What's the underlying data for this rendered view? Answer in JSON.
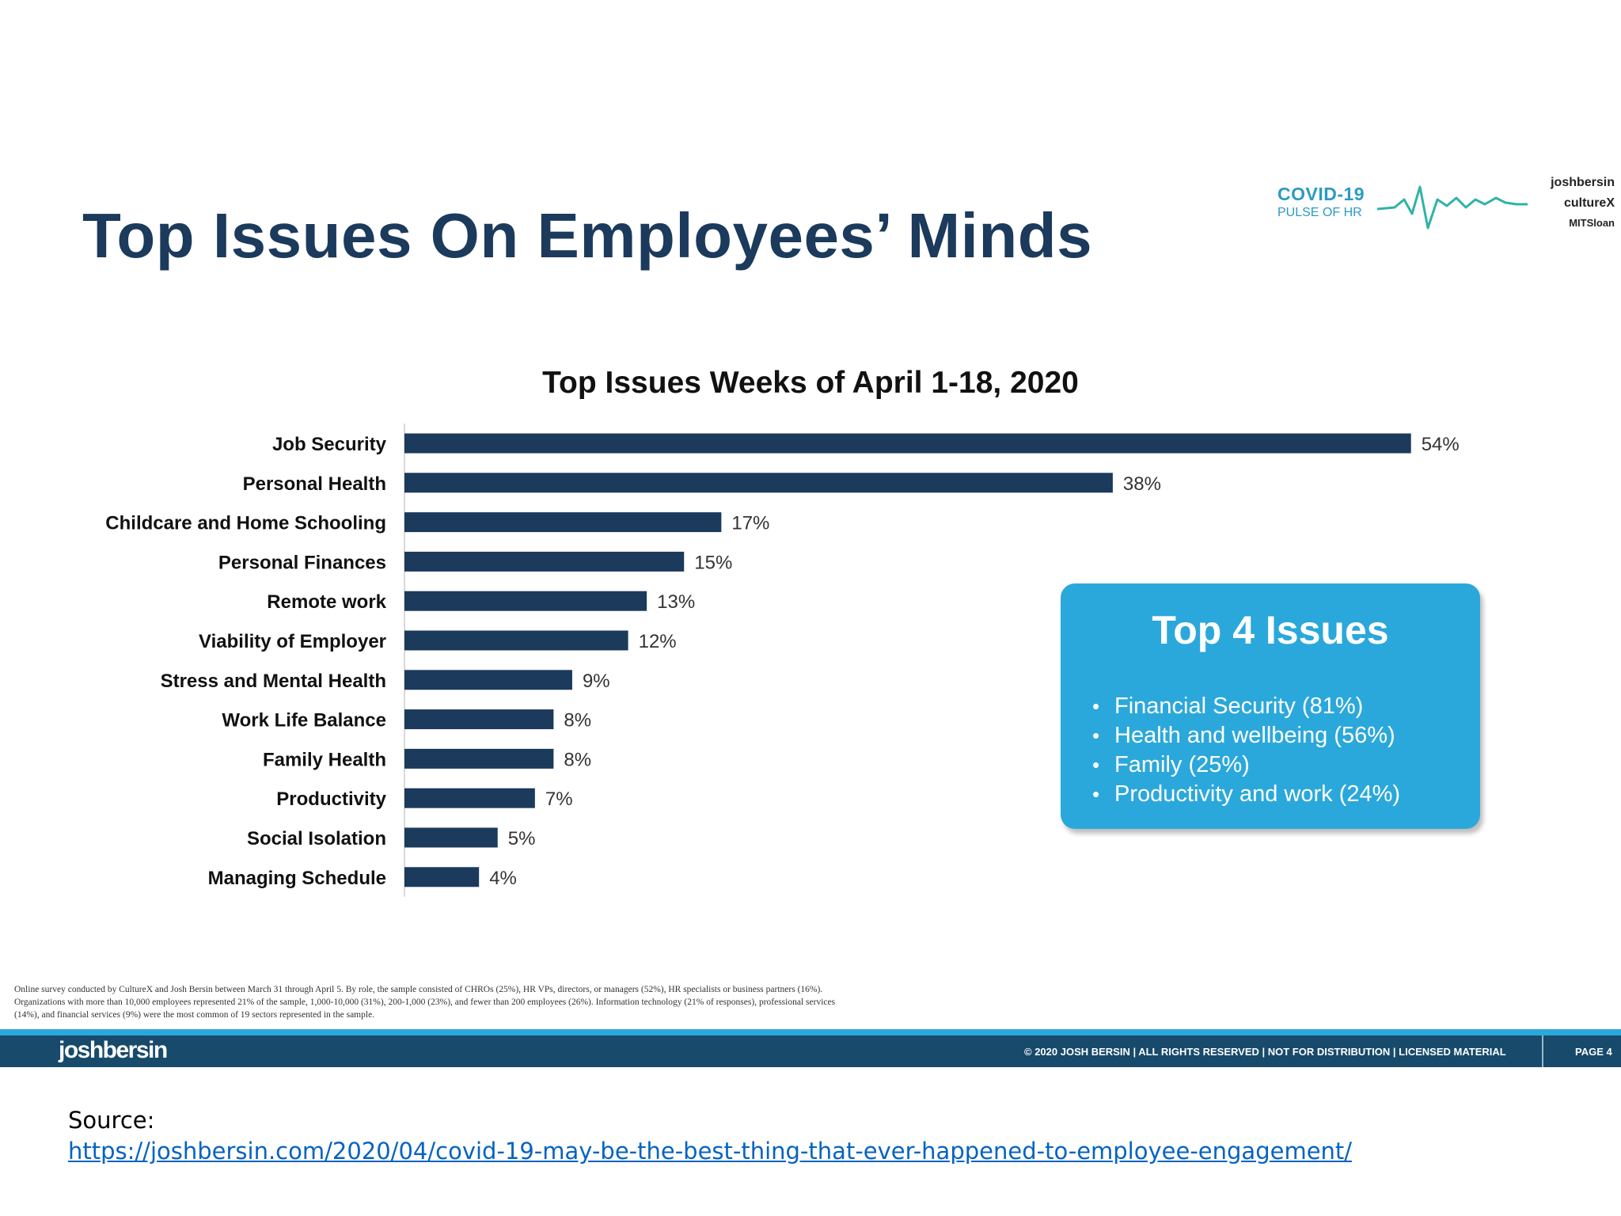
{
  "slide": {
    "title": "Top Issues On Employees’ Minds"
  },
  "brand": {
    "covid_title": "COVID-19",
    "covid_subtitle": "PULSE OF HR",
    "partners": [
      "joshbersin",
      "cultureX",
      "MITSloan"
    ]
  },
  "chart_data": {
    "type": "bar",
    "orientation": "horizontal",
    "title": "Top Issues Weeks of April 1-18, 2020",
    "categories": [
      "Job Security",
      "Personal Health",
      "Childcare and Home Schooling",
      "Personal Finances",
      "Remote work",
      "Viability of Employer",
      "Stress and Mental Health",
      "Work Life Balance",
      "Family Health",
      "Productivity",
      "Social Isolation",
      "Managing Schedule"
    ],
    "values": [
      54,
      38,
      17,
      15,
      13,
      12,
      9,
      8,
      8,
      7,
      5,
      4
    ],
    "value_labels": [
      "54%",
      "38%",
      "17%",
      "15%",
      "13%",
      "12%",
      "9%",
      "8%",
      "8%",
      "7%",
      "5%",
      "4%"
    ],
    "xlim": [
      0,
      60
    ],
    "xticks": [
      "0%",
      "10%",
      "20%",
      "30%",
      "40%",
      "50%",
      "60%"
    ],
    "xlabel": "",
    "ylabel": "",
    "grid": false,
    "bar_color": "#1b3a5c"
  },
  "callout": {
    "title": "Top 4 Issues",
    "items": [
      "Financial Security (81%)",
      "Health and wellbeing (56%)",
      "Family (25%)",
      "Productivity and work (24%)"
    ]
  },
  "footnote": {
    "lines": [
      "Online survey conducted by CultureX and Josh Bersin between March 31 through April 5.  By role, the sample consisted of CHROs (25%), HR VPs, directors, or managers (52%), HR specialists or business partners (16%).",
      "Organizations with more than 10,000 employees represented 21% of the sample, 1,000-10,000 (31%), 200-1,000 (23%), and fewer than 200 employees (26%). Information technology (21% of responses), professional services",
      "(14%), and financial services (9%) were the most common of 19 sectors represented in the sample."
    ]
  },
  "footer": {
    "logo": "joshbersin",
    "copyright": "© 2020 JOSH BERSIN | ALL RIGHTS RESERVED | NOT FOR DISTRIBUTION | LICENSED MATERIAL",
    "page": "PAGE  4"
  },
  "source": {
    "label": "Source:",
    "url": "https://joshbersin.com/2020/04/covid-19-may-be-the-best-thing-that-ever-happened-to-employee-engagement/"
  }
}
